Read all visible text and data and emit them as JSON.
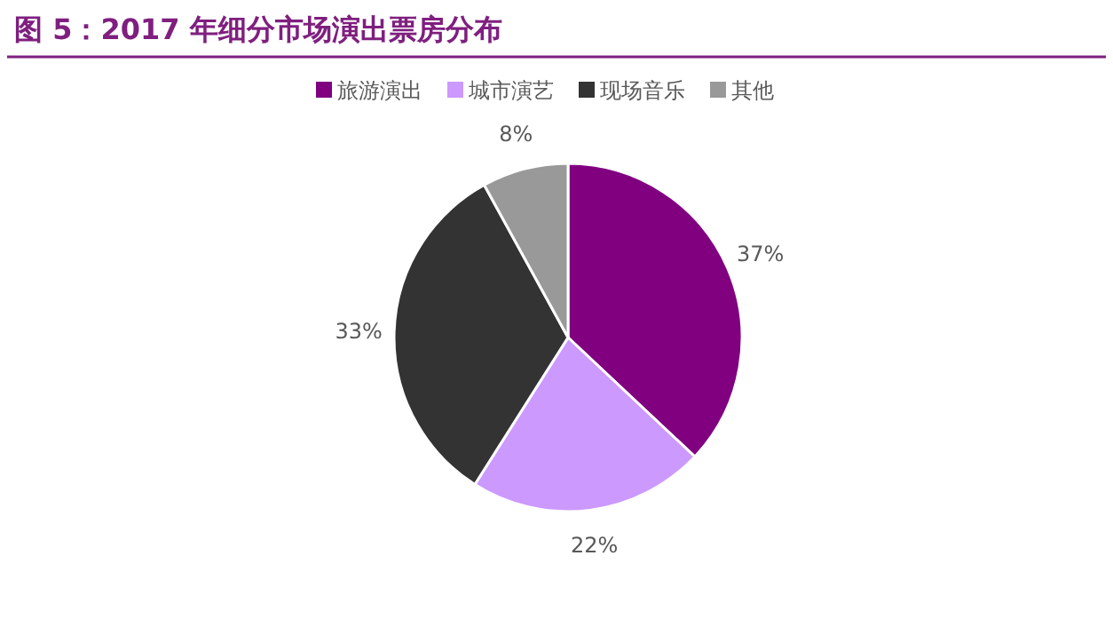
{
  "chart_data": {
    "type": "pie",
    "title": "图 5：2017 年细分市场演出票房分布",
    "categories": [
      "旅游演出",
      "城市演艺",
      "现场音乐",
      "其他"
    ],
    "values": [
      37,
      22,
      33,
      8
    ],
    "colors": [
      "#800080",
      "#cc99ff",
      "#333333",
      "#999999"
    ],
    "value_labels": [
      "37%",
      "22%",
      "33%",
      "8%"
    ],
    "legend": "top"
  }
}
